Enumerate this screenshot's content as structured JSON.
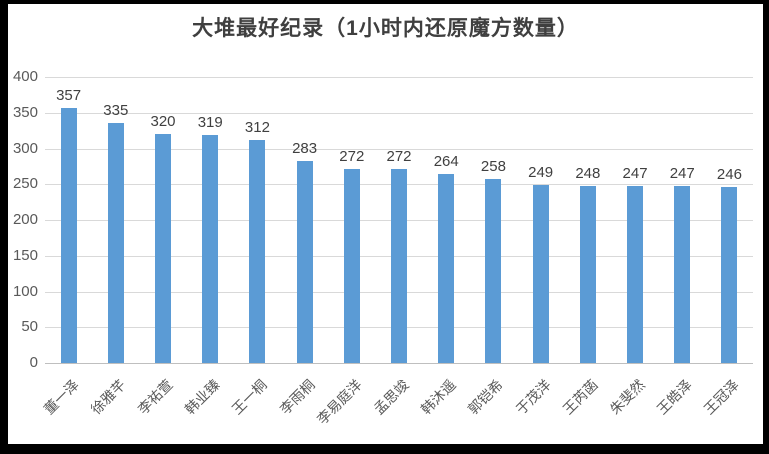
{
  "chart_data": {
    "type": "bar",
    "title": "大堆最好纪录（1小时内还原魔方数量）",
    "categories": [
      "董一泽",
      "徐雅芊",
      "李祐萱",
      "韩业臻",
      "王一桐",
      "李雨桐",
      "李易庭洋",
      "孟思竣",
      "韩沐遥",
      "郭铠希",
      "于茂洋",
      "王芮菡",
      "朱斐然",
      "王皓泽",
      "王冠泽"
    ],
    "values": [
      357,
      335,
      320,
      319,
      312,
      283,
      272,
      272,
      264,
      258,
      249,
      248,
      247,
      247,
      246
    ],
    "xlabel": "",
    "ylabel": "",
    "ylim": [
      0,
      400
    ],
    "yticks": [
      0,
      50,
      100,
      150,
      200,
      250,
      300,
      350,
      400
    ],
    "grid": true,
    "legend": "none",
    "data_labels": true,
    "colors": {
      "bar": "#5b9bd5",
      "gridline": "#d9d9d9",
      "axis_line": "#bfbfbf",
      "axis_text": "#595959",
      "value_label": "#404040",
      "title": "#3f3f3f",
      "frame_border": "#000000"
    }
  }
}
